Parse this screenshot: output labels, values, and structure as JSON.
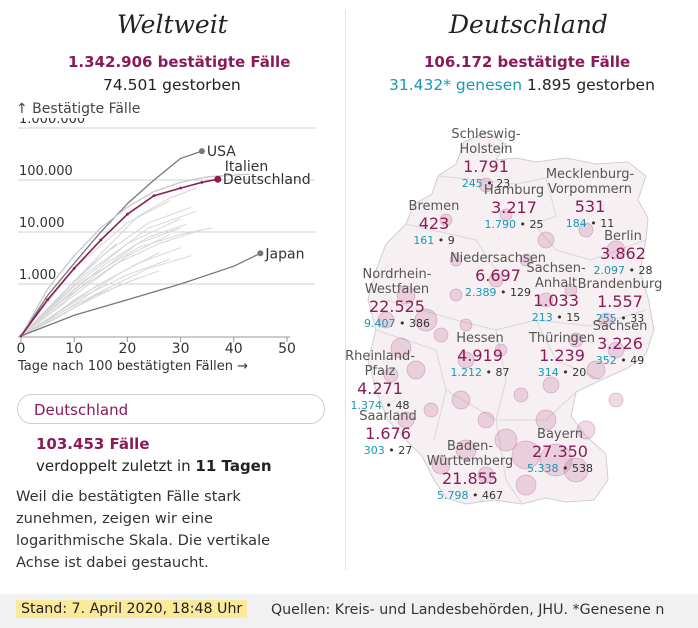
{
  "world": {
    "title": "Weltweit",
    "confirmed": "1.342.906 bestätigte Fälle",
    "deaths": "74.501 gestorben"
  },
  "germany": {
    "title": "Deutschland",
    "confirmed": "106.172 bestätigte Fälle",
    "recovered": "31.432* genesen",
    "deaths": "1.895 gestorben"
  },
  "selector": {
    "value": "Deutschland"
  },
  "highlight": {
    "cases": "103.453 Fälle",
    "doubling_prefix": "verdoppelt zuletzt in ",
    "doubling_days": "11 Tagen"
  },
  "explanation": "Weil die bestätigten Fälle stark zunehmen, zeigen wir eine logarithmische Skala. Die vertikale Achse ist dabei gestaucht.",
  "footer": {
    "stand": "Stand: 7. April 2020, 18:48 Uhr",
    "sources": "Quellen: Kreis- und Landesbehörden, JHU. *Genesene n"
  },
  "colors": {
    "accent": "#8b1a5b",
    "teal": "#1a98b5",
    "grey": "#777777",
    "bg_lines": "#d4d4d4"
  },
  "chart_data": {
    "type": "line",
    "scale": "log",
    "ylabel": "↑ Bestätigte Fälle",
    "xlabel": "Tage nach 100 bestätigten Fällen →",
    "xlim": [
      0,
      50
    ],
    "ylim": [
      100,
      1000000
    ],
    "x_ticks": [
      "0",
      "10",
      "20",
      "30",
      "40",
      "50"
    ],
    "y_ticks": [
      {
        "v": 1000000,
        "label": "1.000.000"
      },
      {
        "v": 100000,
        "label": "100.000"
      },
      {
        "v": 10000,
        "label": "10.000"
      },
      {
        "v": 1000,
        "label": "1.000"
      }
    ],
    "series": [
      {
        "name": "USA",
        "label": "USA",
        "color": "#777777",
        "highlight": false,
        "points": [
          [
            0,
            100
          ],
          [
            5,
            600
          ],
          [
            10,
            2500
          ],
          [
            15,
            10000
          ],
          [
            20,
            35000
          ],
          [
            25,
            100000
          ],
          [
            30,
            260000
          ],
          [
            34,
            360000
          ]
        ]
      },
      {
        "name": "Italien",
        "label": "Italien",
        "color": "#c8c8c8",
        "highlight": false,
        "points": [
          [
            0,
            100
          ],
          [
            5,
            800
          ],
          [
            10,
            3500
          ],
          [
            15,
            12000
          ],
          [
            20,
            30000
          ],
          [
            25,
            60000
          ],
          [
            30,
            90000
          ],
          [
            35,
            115000
          ],
          [
            43,
            130000
          ]
        ]
      },
      {
        "name": "Deutschland",
        "label": "Deutschland",
        "color": "#8b1a5b",
        "highlight": true,
        "points": [
          [
            0,
            100
          ],
          [
            5,
            500
          ],
          [
            10,
            2000
          ],
          [
            15,
            7000
          ],
          [
            20,
            22000
          ],
          [
            25,
            50000
          ],
          [
            30,
            70000
          ],
          [
            34,
            90000
          ],
          [
            37,
            103453
          ]
        ]
      },
      {
        "name": "Japan",
        "label": "Japan",
        "color": "#777777",
        "highlight": false,
        "points": [
          [
            0,
            100
          ],
          [
            10,
            250
          ],
          [
            20,
            500
          ],
          [
            30,
            1000
          ],
          [
            40,
            2200
          ],
          [
            45,
            3900
          ]
        ]
      }
    ],
    "background_series": [
      [
        [
          0,
          100
        ],
        [
          10,
          900
        ],
        [
          20,
          6000
        ],
        [
          30,
          18000
        ]
      ],
      [
        [
          0,
          100
        ],
        [
          8,
          700
        ],
        [
          16,
          4000
        ],
        [
          24,
          15000
        ],
        [
          32,
          30000
        ]
      ],
      [
        [
          0,
          100
        ],
        [
          12,
          1500
        ],
        [
          24,
          12000
        ],
        [
          33,
          25000
        ]
      ],
      [
        [
          0,
          100
        ],
        [
          6,
          300
        ],
        [
          14,
          1500
        ],
        [
          22,
          6000
        ],
        [
          30,
          12000
        ]
      ],
      [
        [
          0,
          100
        ],
        [
          10,
          600
        ],
        [
          20,
          3500
        ],
        [
          28,
          9000
        ]
      ],
      [
        [
          0,
          100
        ],
        [
          8,
          500
        ],
        [
          18,
          2500
        ],
        [
          26,
          6000
        ],
        [
          34,
          11000
        ]
      ],
      [
        [
          0,
          100
        ],
        [
          10,
          400
        ],
        [
          18,
          1500
        ],
        [
          26,
          4000
        ]
      ],
      [
        [
          0,
          100
        ],
        [
          6,
          250
        ],
        [
          14,
          900
        ],
        [
          22,
          2500
        ],
        [
          30,
          5000
        ]
      ],
      [
        [
          0,
          100
        ],
        [
          12,
          600
        ],
        [
          20,
          1500
        ],
        [
          28,
          3000
        ]
      ],
      [
        [
          0,
          100
        ],
        [
          10,
          350
        ],
        [
          18,
          900
        ],
        [
          26,
          1800
        ]
      ],
      [
        [
          0,
          100
        ],
        [
          6,
          200
        ],
        [
          14,
          600
        ],
        [
          22,
          1300
        ]
      ],
      [
        [
          0,
          100
        ],
        [
          8,
          300
        ],
        [
          16,
          800
        ],
        [
          24,
          2000
        ],
        [
          32,
          3500
        ]
      ],
      [
        [
          0,
          100
        ],
        [
          14,
          3000
        ],
        [
          22,
          20000
        ],
        [
          28,
          45000
        ],
        [
          33,
          70000
        ]
      ],
      [
        [
          0,
          100
        ],
        [
          10,
          2000
        ],
        [
          20,
          15000
        ],
        [
          28,
          40000
        ]
      ],
      [
        [
          0,
          100
        ],
        [
          6,
          400
        ],
        [
          12,
          1800
        ],
        [
          18,
          6000
        ]
      ],
      [
        [
          0,
          100
        ],
        [
          5,
          200
        ],
        [
          10,
          500
        ],
        [
          15,
          1000
        ]
      ],
      [
        [
          0,
          100
        ],
        [
          12,
          1200
        ],
        [
          22,
          5000
        ],
        [
          30,
          9000
        ],
        [
          36,
          12000
        ]
      ],
      [
        [
          0,
          100
        ],
        [
          16,
          2500
        ],
        [
          24,
          8000
        ],
        [
          31,
          14000
        ]
      ]
    ]
  },
  "map": {
    "states": [
      {
        "id": "schleswig-holstein",
        "name": "Schleswig-\nHolstein",
        "cases": "1.791",
        "recovered": "245",
        "deaths": "23"
      },
      {
        "id": "mecklenburg-vorpommern",
        "name": "Mecklenburg-\nVorpommern",
        "cases": "531",
        "recovered": "184",
        "deaths": "11"
      },
      {
        "id": "hamburg",
        "name": "Hamburg",
        "cases": "3.217",
        "recovered": "1.790",
        "deaths": "25"
      },
      {
        "id": "bremen",
        "name": "Bremen",
        "cases": "423",
        "recovered": "161",
        "deaths": "9"
      },
      {
        "id": "berlin",
        "name": "Berlin",
        "cases": "3.862",
        "recovered": "2.097",
        "deaths": "28"
      },
      {
        "id": "niedersachsen",
        "name": "Niedersachsen",
        "cases": "6.697",
        "recovered": "2.389",
        "deaths": "129"
      },
      {
        "id": "sachsen-anhalt",
        "name": "Sachsen-\nAnhalt",
        "cases": "1.033",
        "recovered": "213",
        "deaths": "15"
      },
      {
        "id": "brandenburg",
        "name": "Brandenburg",
        "cases": "1.557",
        "recovered": "255",
        "deaths": "33"
      },
      {
        "id": "nordrhein-westfalen",
        "name": "Nordrhein-\nWestfalen",
        "cases": "22.525",
        "recovered": "9.407",
        "deaths": "386"
      },
      {
        "id": "hessen",
        "name": "Hessen",
        "cases": "4.919",
        "recovered": "1.212",
        "deaths": "87"
      },
      {
        "id": "thueringen",
        "name": "Thüringen",
        "cases": "1.239",
        "recovered": "314",
        "deaths": "20"
      },
      {
        "id": "sachsen",
        "name": "Sachsen",
        "cases": "3.226",
        "recovered": "352",
        "deaths": "49"
      },
      {
        "id": "rheinland-pfalz",
        "name": "Rheinland-\nPfalz",
        "cases": "4.271",
        "recovered": "1.374",
        "deaths": "48"
      },
      {
        "id": "saarland",
        "name": "Saarland",
        "cases": "1.676",
        "recovered": "303",
        "deaths": "27"
      },
      {
        "id": "baden-wuerttemberg",
        "name": "Baden-\nWürttemberg",
        "cases": "21.855",
        "recovered": "5.798",
        "deaths": "467"
      },
      {
        "id": "bayern",
        "name": "Bayern",
        "cases": "27.350",
        "recovered": "5.338",
        "deaths": "538"
      }
    ]
  }
}
